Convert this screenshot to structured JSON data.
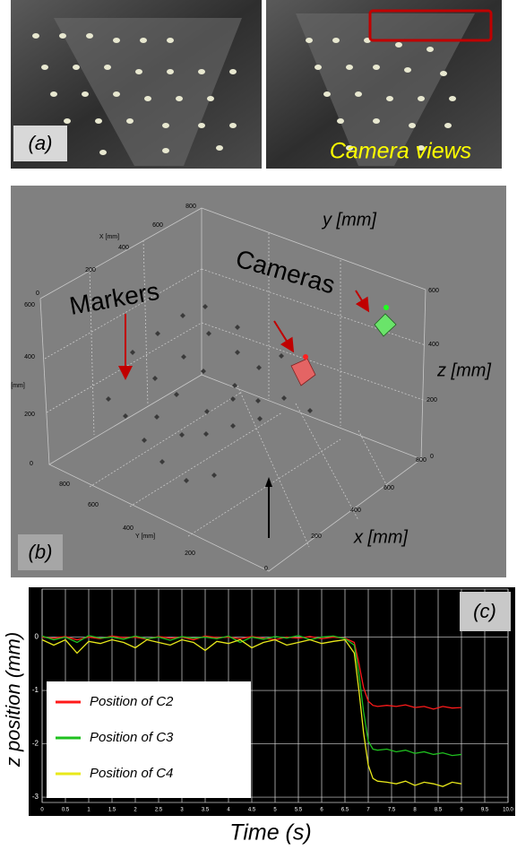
{
  "panel_a": {
    "label": "(a)",
    "caption": "Camera views"
  },
  "panel_b": {
    "label": "(b)",
    "annotations": {
      "markers": "Markers",
      "cameras": "Cameras",
      "y_axis": "y [mm]",
      "z_axis": "z [mm]",
      "x_axis": "x [mm]"
    },
    "tick_texts": [
      "800",
      "600",
      "400",
      "200",
      "0",
      "X [mm]",
      "600",
      "400",
      "[mm]",
      "200",
      "0",
      "800",
      "600",
      "400",
      "Y [mm]",
      "200",
      "0",
      "600",
      "400",
      "200",
      "0",
      "800",
      "600",
      "400",
      "200"
    ]
  },
  "chart_data": {
    "type": "line",
    "label": "(c)",
    "x_label": "Time (s)",
    "y_label": "z position (mm)",
    "x": [
      0,
      0.25,
      0.5,
      0.75,
      1,
      1.25,
      1.5,
      1.75,
      2,
      2.25,
      2.5,
      2.75,
      3,
      3.25,
      3.5,
      3.75,
      4,
      4.25,
      4.5,
      4.75,
      5,
      5.25,
      5.5,
      5.75,
      6,
      6.25,
      6.5,
      6.7,
      6.8,
      6.9,
      7.0,
      7.1,
      7.2,
      7.4,
      7.6,
      7.8,
      8.0,
      8.2,
      8.4,
      8.6,
      8.8,
      9.0
    ],
    "series": [
      {
        "name": "Position of C2",
        "color": "#ff1a1a",
        "values": [
          0,
          -0.02,
          0.01,
          -0.05,
          0,
          -0.03,
          0.02,
          -0.01,
          0,
          -0.04,
          0.01,
          -0.02,
          0,
          -0.05,
          0.02,
          -0.01,
          0,
          -0.03,
          0.01,
          -0.02,
          -0.05,
          0,
          -0.02,
          0.01,
          -0.03,
          0,
          -0.02,
          -0.1,
          -0.5,
          -0.95,
          -1.2,
          -1.28,
          -1.3,
          -1.28,
          -1.3,
          -1.27,
          -1.32,
          -1.3,
          -1.35,
          -1.3,
          -1.33,
          -1.32
        ]
      },
      {
        "name": "Position of C3",
        "color": "#1fc01f",
        "values": [
          0.02,
          -0.05,
          0,
          -0.1,
          0.03,
          -0.02,
          0,
          -0.04,
          0.02,
          -0.03,
          0,
          -0.06,
          0.01,
          -0.02,
          0,
          -0.03,
          0.02,
          -0.1,
          0,
          -0.04,
          0.01,
          -0.02,
          0.03,
          -0.05,
          0,
          0.02,
          -0.03,
          -0.15,
          -0.7,
          -1.4,
          -1.95,
          -2.1,
          -2.12,
          -2.1,
          -2.15,
          -2.12,
          -2.18,
          -2.15,
          -2.2,
          -2.17,
          -2.22,
          -2.2
        ]
      },
      {
        "name": "Position of C4",
        "color": "#e8e81a",
        "values": [
          -0.05,
          -0.15,
          -0.05,
          -0.3,
          -0.08,
          -0.12,
          -0.05,
          -0.1,
          -0.2,
          -0.05,
          -0.1,
          -0.15,
          -0.05,
          -0.1,
          -0.25,
          -0.08,
          -0.12,
          -0.05,
          -0.2,
          -0.1,
          -0.05,
          -0.15,
          -0.1,
          -0.05,
          -0.12,
          -0.08,
          -0.05,
          -0.3,
          -1.0,
          -1.8,
          -2.4,
          -2.65,
          -2.7,
          -2.72,
          -2.75,
          -2.7,
          -2.78,
          -2.72,
          -2.75,
          -2.8,
          -2.72,
          -2.75
        ]
      }
    ],
    "xlim": [
      0,
      10
    ],
    "ylim": [
      -3.1,
      0.9
    ],
    "xticks": [
      0,
      0.5,
      1,
      1.5,
      2,
      2.5,
      3,
      3.5,
      4,
      4.5,
      5,
      5.5,
      6,
      6.5,
      7,
      7.5,
      8,
      8.5,
      9,
      9.5,
      {
        "value": 10,
        "label": "10.0"
      }
    ],
    "yticks": [
      0,
      -1,
      -2,
      -3
    ],
    "grid": true
  }
}
